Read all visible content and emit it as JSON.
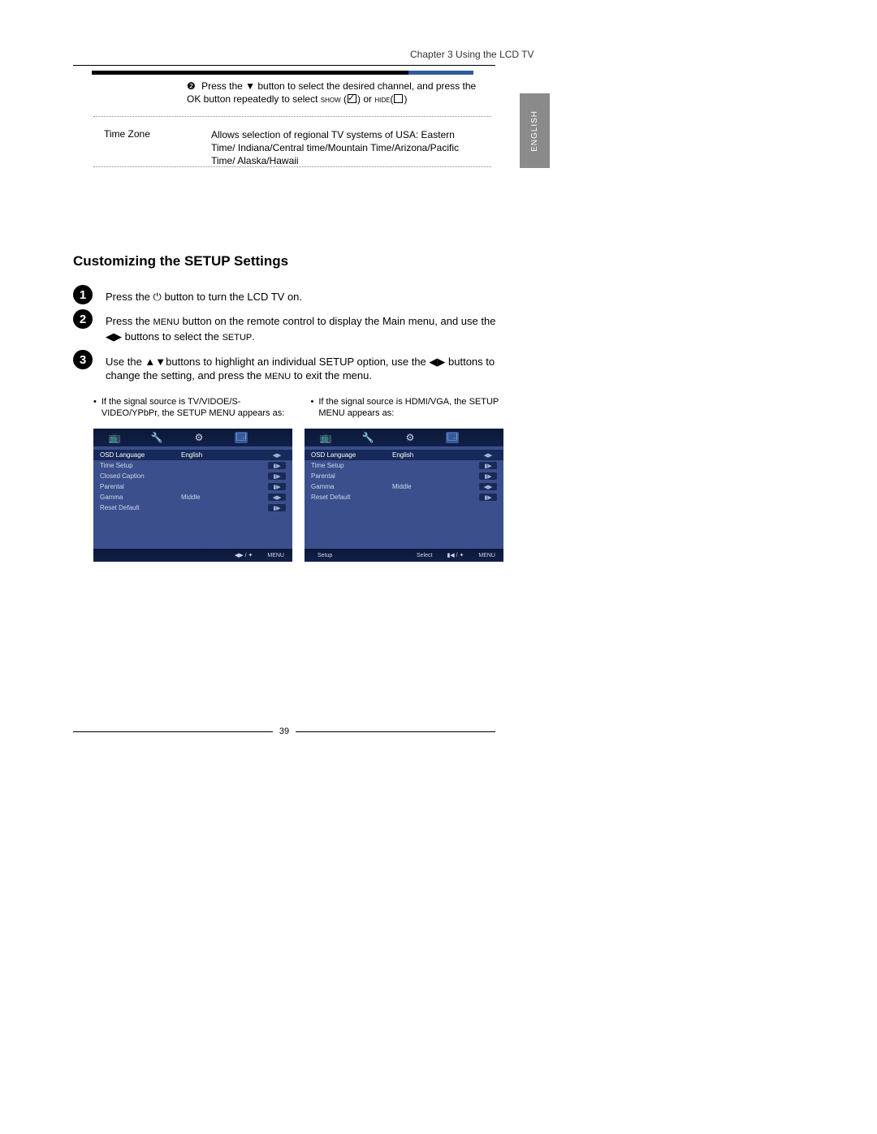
{
  "header": {
    "chapter": "Chapter 3 Using the LCD TV",
    "lang_tab": "ENGLISH"
  },
  "table": {
    "row1_num": "❷",
    "row1_text_a": "Press the ▼ button to select the desired channel, and press the OK button repeatedly to select ",
    "row1_show": "show",
    "row1_text_b": " (",
    "row1_text_c": ") or ",
    "row1_hide": "hide",
    "row1_text_d": "(",
    "row1_text_e": ")",
    "tz_label": "Time Zone",
    "tz_text": "Allows selection of regional TV systems of USA: Eastern Time/ Indiana/Central time/Mountain Time/Arizona/Pacific Time/ Alaska/Hawaii"
  },
  "section": {
    "title": "Customizing the SETUP Settings",
    "steps": [
      {
        "n": "1",
        "text_a": "Press the ",
        "text_b": " button to turn the LCD TV on."
      },
      {
        "n": "2",
        "text_a": "Press the ",
        "menu": "MENU",
        "text_b": " button on the remote control to display the Main menu, and use the ◀▶ buttons to select the ",
        "setup": "SETUP",
        "text_c": "."
      },
      {
        "n": "3",
        "text_a": "Use the ▲▼buttons to highlight an individual SETUP option, use the ◀▶ buttons to change the setting, and press the ",
        "menu": "MENU",
        "text_b": " to exit the menu."
      }
    ],
    "notes": [
      "If the signal source is TV/VIDOE/S-VIDEO/YPbPr, the SETUP MENU appears as:",
      "If the signal source is HDMI/VGA, the SETUP MENU appears as:"
    ]
  },
  "menu_left": {
    "icons": [
      "📺",
      "🔧",
      "⚙",
      "🗔"
    ],
    "rows": [
      {
        "lbl": "OSD Language",
        "val": "English",
        "hint": "◀▶",
        "sel": true
      },
      {
        "lbl": "Time Setup",
        "val": "",
        "hint": "▮▶",
        "sel": false
      },
      {
        "lbl": "Closed Caption",
        "val": "",
        "hint": "▮▶",
        "sel": false
      },
      {
        "lbl": "Parental",
        "val": "",
        "hint": "▮▶",
        "sel": false
      },
      {
        "lbl": "Gamma",
        "val": "Middle",
        "hint": "◀▶",
        "sel": false
      },
      {
        "lbl": "Reset Default",
        "val": "",
        "hint": "▮▶",
        "sel": false
      }
    ],
    "footer": {
      "left": "",
      "nav": "◀▶ / ✦",
      "menu": "MENU"
    }
  },
  "menu_right": {
    "icons": [
      "📺",
      "🔧",
      "⚙",
      "🗔"
    ],
    "rows": [
      {
        "lbl": "OSD Language",
        "val": "English",
        "hint": "◀▶",
        "sel": true
      },
      {
        "lbl": "Time Setup",
        "val": "",
        "hint": "▮▶",
        "sel": false
      },
      {
        "lbl": "Parental",
        "val": "",
        "hint": "▮▶",
        "sel": false
      },
      {
        "lbl": "Gamma",
        "val": "Middle",
        "hint": "◀▶",
        "sel": false
      },
      {
        "lbl": "Reset Default",
        "val": "",
        "hint": "▮▶",
        "sel": false
      }
    ],
    "footer": {
      "left": "Setup",
      "select": "Select",
      "nav": "▮◀ / ✦",
      "menu": "MENU"
    }
  },
  "page_number": "39",
  "colors": {
    "menu_bg": "#3a4f8c",
    "menu_dark": "#1a2a56",
    "bar_blue": "#2e5b9f",
    "tab_gray": "#8a8a8a"
  }
}
